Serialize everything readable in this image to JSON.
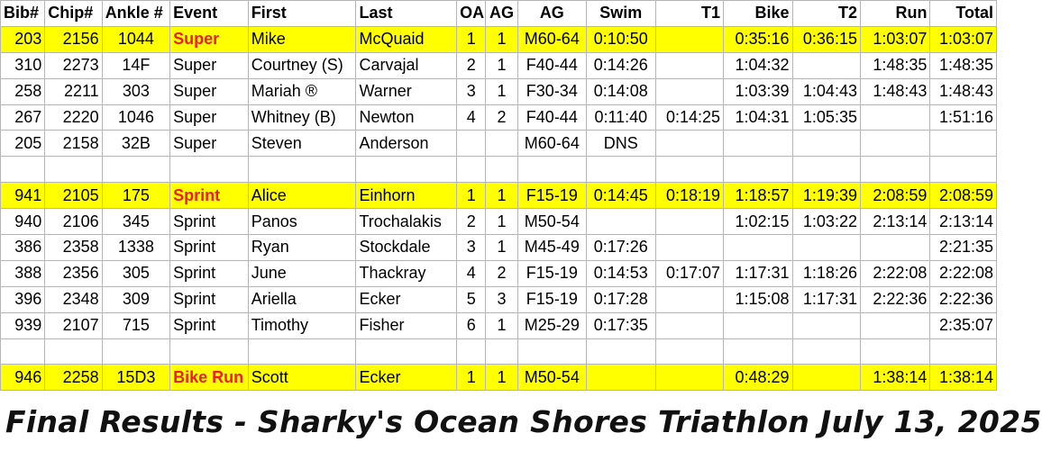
{
  "headers": [
    "Bib#",
    "Chip#",
    "Ankle #",
    "Event",
    "First",
    "Last",
    "OA",
    "AG",
    "AG",
    "Swim",
    "T1",
    "Bike",
    "T2",
    "Run",
    "Total"
  ],
  "rows": [
    {
      "highlight": true,
      "event_red": true,
      "cells": [
        "203",
        "2156",
        "1044",
        "Super",
        "Mike",
        "McQuaid",
        "1",
        "1",
        "M60-64",
        "0:10:50",
        "",
        "0:35:16",
        "0:36:15",
        "1:03:07",
        "1:03:07"
      ]
    },
    {
      "highlight": false,
      "event_red": false,
      "cells": [
        "310",
        "2273",
        "14F",
        "Super",
        "Courtney (S)",
        "Carvajal",
        "2",
        "1",
        "F40-44",
        "0:14:26",
        "",
        "1:04:32",
        "",
        "1:48:35",
        "1:48:35"
      ]
    },
    {
      "highlight": false,
      "event_red": false,
      "cells": [
        "258",
        "2211",
        "303",
        "Super",
        "Mariah ®",
        "Warner",
        "3",
        "1",
        "F30-34",
        "0:14:08",
        "",
        "1:03:39",
        "1:04:43",
        "1:48:43",
        "1:48:43"
      ]
    },
    {
      "highlight": false,
      "event_red": false,
      "cells": [
        "267",
        "2220",
        "1046",
        "Super",
        "Whitney (B)",
        "Newton",
        "4",
        "2",
        "F40-44",
        "0:11:40",
        "0:14:25",
        "1:04:31",
        "1:05:35",
        "",
        "1:51:16"
      ]
    },
    {
      "highlight": false,
      "event_red": false,
      "cells": [
        "205",
        "2158",
        "32B",
        "Super",
        "Steven",
        "Anderson",
        "",
        "",
        "M60-64",
        "DNS",
        "",
        "",
        "",
        "",
        ""
      ]
    },
    {
      "highlight": false,
      "event_red": false,
      "cells": [
        "",
        "",
        "",
        "",
        "",
        "",
        "",
        "",
        "",
        "",
        "",
        "",
        "",
        "",
        ""
      ]
    },
    {
      "highlight": true,
      "event_red": true,
      "cells": [
        "941",
        "2105",
        "175",
        "Sprint",
        "Alice",
        "Einhorn",
        "1",
        "1",
        "F15-19",
        "0:14:45",
        "0:18:19",
        "1:18:57",
        "1:19:39",
        "2:08:59",
        "2:08:59"
      ]
    },
    {
      "highlight": false,
      "event_red": false,
      "cells": [
        "940",
        "2106",
        "345",
        "Sprint",
        "Panos",
        "Trochalakis",
        "2",
        "1",
        "M50-54",
        "",
        "",
        "1:02:15",
        "1:03:22",
        "2:13:14",
        "2:13:14"
      ]
    },
    {
      "highlight": false,
      "event_red": false,
      "cells": [
        "386",
        "2358",
        "1338",
        "Sprint",
        "Ryan",
        "Stockdale",
        "3",
        "1",
        "M45-49",
        "0:17:26",
        "",
        "",
        "",
        "",
        "2:21:35"
      ]
    },
    {
      "highlight": false,
      "event_red": false,
      "cells": [
        "388",
        "2356",
        "305",
        "Sprint",
        "June",
        "Thackray",
        "4",
        "2",
        "F15-19",
        "0:14:53",
        "0:17:07",
        "1:17:31",
        "1:18:26",
        "2:22:08",
        "2:22:08"
      ]
    },
    {
      "highlight": false,
      "event_red": false,
      "cells": [
        "396",
        "2348",
        "309",
        "Sprint",
        "Ariella",
        "Ecker",
        "5",
        "3",
        "F15-19",
        "0:17:28",
        "",
        "1:15:08",
        "1:17:31",
        "2:22:36",
        "2:22:36"
      ]
    },
    {
      "highlight": false,
      "event_red": false,
      "cells": [
        "939",
        "2107",
        "715",
        "Sprint",
        "Timothy",
        "Fisher",
        "6",
        "1",
        "M25-29",
        "0:17:35",
        "",
        "",
        "",
        "",
        "2:35:07"
      ]
    },
    {
      "highlight": false,
      "event_red": false,
      "cells": [
        "",
        "",
        "",
        "",
        "",
        "",
        "",
        "",
        "",
        "",
        "",
        "",
        "",
        "",
        ""
      ]
    },
    {
      "highlight": true,
      "event_red": true,
      "cells": [
        "946",
        "2258",
        "15D3",
        "Bike Run",
        "Scott",
        "Ecker",
        "1",
        "1",
        "M50-54",
        "",
        "",
        "0:48:29",
        "",
        "1:38:14",
        "1:38:14"
      ]
    }
  ],
  "footer_title": "Final Results - Sharky's Ocean Shores Triathlon July 13, 2025",
  "colors": {
    "highlight": "#ffff00",
    "event_red": "#ee1c25",
    "grid": "#b5b5b5"
  }
}
